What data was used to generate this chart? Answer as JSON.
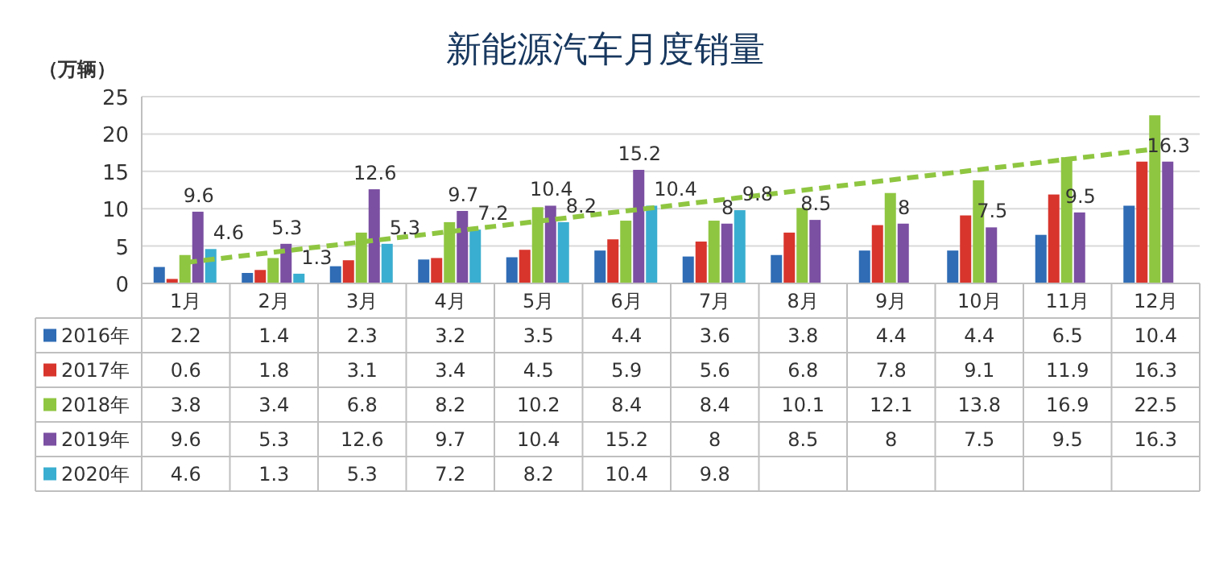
{
  "chart_data": {
    "type": "bar",
    "title": "新能源汽车月度销量",
    "ylabel": "（万辆）",
    "categories": [
      "1月",
      "2月",
      "3月",
      "4月",
      "5月",
      "6月",
      "7月",
      "8月",
      "9月",
      "10月",
      "11月",
      "12月"
    ],
    "ylim": [
      0,
      25
    ],
    "yticks": [
      0,
      5,
      10,
      15,
      20,
      25
    ],
    "grid": "y",
    "legend": "bottom",
    "data_labels": true,
    "series": [
      {
        "name": "2016年",
        "color": "#2f6cb5",
        "values": [
          2.2,
          1.4,
          2.3,
          3.2,
          3.5,
          4.4,
          3.6,
          3.8,
          4.4,
          4.4,
          6.5,
          10.4
        ]
      },
      {
        "name": "2017年",
        "color": "#d8352c",
        "values": [
          0.6,
          1.8,
          3.1,
          3.4,
          4.5,
          5.9,
          5.6,
          6.8,
          7.8,
          9.1,
          11.9,
          16.3
        ]
      },
      {
        "name": "2018年",
        "color": "#8fc641",
        "values": [
          3.8,
          3.4,
          6.8,
          8.2,
          10.2,
          8.4,
          8.4,
          10.1,
          12.1,
          13.8,
          16.9,
          22.5
        ]
      },
      {
        "name": "2019年",
        "color": "#7b4fa2",
        "values": [
          9.6,
          5.3,
          12.6,
          9.7,
          10.4,
          15.2,
          8,
          8.5,
          8,
          7.5,
          9.5,
          16.3
        ]
      },
      {
        "name": "2020年",
        "color": "#3aaed0",
        "values": [
          4.6,
          1.3,
          5.3,
          7.2,
          8.2,
          10.4,
          9.8,
          null,
          null,
          null,
          null,
          null
        ]
      },
      {
        "type": "line",
        "color": "#8fc641",
        "line_style": "dashed",
        "x": [
          "1月",
          "12月"
        ],
        "values": [
          2.8,
          18.0
        ],
        "value_labels": [
          null,
          null
        ]
      }
    ],
    "annotations": [
      {
        "text": "9.6",
        "x": "1月",
        "y": 9.6
      },
      {
        "text": "5.3",
        "x": "2月",
        "y": 5.3
      },
      {
        "text": "12.6",
        "x": "3月",
        "y": 12.6
      },
      {
        "text": "9.7",
        "x": "4月",
        "y": 9.7
      },
      {
        "text": "10.4",
        "x": "5月",
        "y": 10.4
      },
      {
        "text": "15.2",
        "x": "6月",
        "y": 15.2
      },
      {
        "text": "8",
        "x": "7月",
        "y": 8
      },
      {
        "text": "8.5",
        "x": "8月",
        "y": 8.5
      },
      {
        "text": "8",
        "x": "9月",
        "y": 8
      },
      {
        "text": "7.5",
        "x": "10月",
        "y": 7.5
      },
      {
        "text": "9.5",
        "x": "11月",
        "y": 9.5
      },
      {
        "text": "16.3",
        "x": "12月",
        "y": 16.3
      },
      {
        "text": "4.6",
        "x": "1月",
        "y": 4.6
      },
      {
        "text": "1.3",
        "x": "2月",
        "y": 1.3
      },
      {
        "text": "5.3",
        "x": "3月",
        "y": 5.3
      },
      {
        "text": "7.2",
        "x": "4月",
        "y": 7.2
      },
      {
        "text": "8.2",
        "x": "5月",
        "y": 8.2
      },
      {
        "text": "10.4",
        "x": "6月",
        "y": 10.4
      },
      {
        "text": "9.8",
        "x": "7月",
        "y": 9.8
      }
    ]
  }
}
